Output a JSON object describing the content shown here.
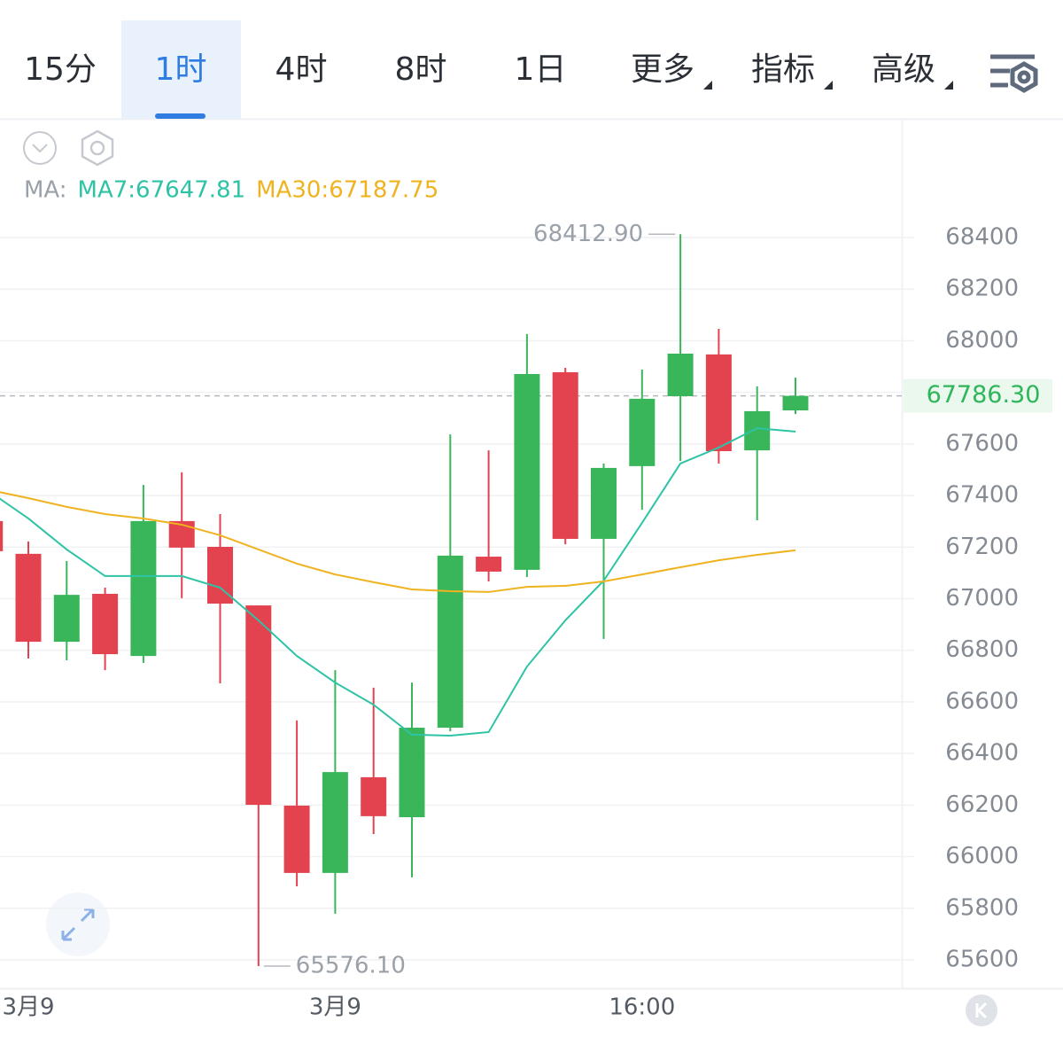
{
  "tabs": [
    {
      "label": "15分"
    },
    {
      "label": "1时",
      "selected": true
    },
    {
      "label": "4时"
    },
    {
      "label": "8时"
    },
    {
      "label": "1日"
    },
    {
      "label": "更多",
      "dropdown": true
    },
    {
      "label": "指标",
      "dropdown": true
    },
    {
      "label": "高级",
      "dropdown": true
    }
  ],
  "chart_data": {
    "type": "candlestick",
    "legend_prefix": "MA:",
    "categories": [
      null,
      "3月9",
      null,
      null,
      null,
      null,
      null,
      null,
      null,
      "3月9",
      null,
      null,
      null,
      null,
      null,
      null,
      null,
      "16:00",
      null,
      null,
      null,
      null
    ],
    "open": [
      67301,
      67174,
      66833,
      67019,
      66778,
      67301,
      67201,
      66974,
      66198,
      65937,
      66308,
      66153,
      66500,
      67163,
      67112,
      67878,
      67232,
      67514,
      67785,
      67947,
      67575,
      67730
    ],
    "high": [
      67301,
      67222,
      67146,
      67043,
      67441,
      67490,
      67328,
      66974,
      66528,
      66723,
      66655,
      66675,
      67637,
      67575,
      68026,
      67895,
      67524,
      67888,
      68412.9,
      68046,
      67823,
      67857
    ],
    "low": [
      67184,
      66768,
      66761,
      66723,
      66751,
      67002,
      66672,
      65576.1,
      65885,
      65779,
      66088,
      65920,
      66486,
      67067,
      67084,
      67211,
      66844,
      67345,
      67534,
      67524,
      67304,
      67716
    ],
    "close": [
      67184,
      66833,
      67015,
      66785,
      67301,
      67198,
      66981,
      66201,
      65937,
      66328,
      66157,
      66500,
      67167,
      67105,
      67871,
      67232,
      67507,
      67775,
      67950,
      67572,
      67727,
      67786.3
    ],
    "up_color": "#3ab65a",
    "down_color": "#e2434f",
    "series": [
      {
        "name": "MA7",
        "legend_label": "MA7:67647.81",
        "color": "#2ec3a5",
        "values": [
          67414,
          67311,
          67191,
          67088,
          67088,
          67088,
          67043,
          66916,
          66778,
          66675,
          66589,
          66473,
          66469,
          66483,
          66737,
          66916,
          67070,
          67294,
          67524,
          67586,
          67661,
          67647.81
        ]
      },
      {
        "name": "MA30",
        "legend_label": "MA30:67187.75",
        "color": "#efb320",
        "values": [
          67421,
          67390,
          67356,
          67328,
          67311,
          67287,
          67246,
          67191,
          67136,
          67094,
          67064,
          67036,
          67029,
          67026,
          67046,
          67050,
          67067,
          67094,
          67122,
          67149,
          67170,
          67187.75
        ]
      }
    ],
    "annotations": [
      {
        "label": "68412.90",
        "value": 68412.9
      },
      {
        "label": "65576.10",
        "value": 65576.1
      }
    ],
    "last_price": {
      "value": 67786.3,
      "label": "67786.30"
    },
    "ylim": [
      65490,
      68857
    ],
    "yticks": [
      65600,
      65800,
      66000,
      66200,
      66400,
      66600,
      66800,
      67000,
      67200,
      67400,
      67600,
      67800,
      68000,
      68200,
      68400
    ],
    "grid": true
  }
}
